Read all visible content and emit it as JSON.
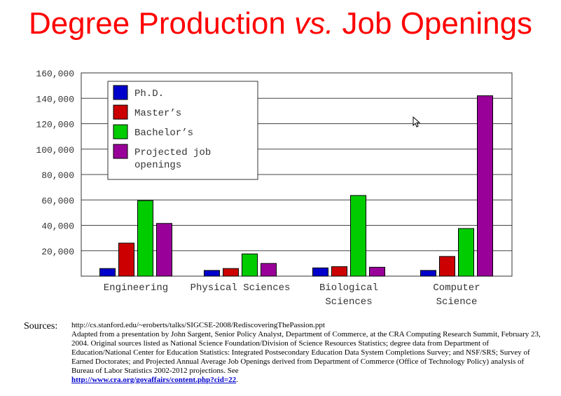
{
  "title": {
    "part1": "Degree Production ",
    "part2": "vs.",
    "part3": " Job Openings"
  },
  "chart_data": {
    "type": "bar",
    "ylim": [
      0,
      160000
    ],
    "yticks": [
      "20,000",
      "40,000",
      "60,000",
      "80,000",
      "100,000",
      "120,000",
      "140,000",
      "160,000"
    ],
    "ytick_values": [
      20000,
      40000,
      60000,
      80000,
      100000,
      120000,
      140000,
      160000
    ],
    "categories": [
      [
        "Engineering"
      ],
      [
        "Physical Sciences"
      ],
      [
        "Biological",
        "Sciences"
      ],
      [
        "Computer",
        "Science"
      ]
    ],
    "series": [
      {
        "name": "Ph.D.",
        "color": "#0000cc",
        "values": [
          6000,
          4500,
          6500,
          4500
        ]
      },
      {
        "name": "Master's",
        "color": "#cc0000",
        "values": [
          26000,
          6000,
          7500,
          15500
        ]
      },
      {
        "name": "Bachelor's",
        "color": "#00cc00",
        "values": [
          59500,
          17500,
          63500,
          37500
        ]
      },
      {
        "name": "Projected job openings",
        "color": "#990099",
        "values": [
          41500,
          10000,
          7000,
          142000
        ]
      }
    ],
    "legend": {
      "placement": "top-left",
      "entries": [
        [
          "Ph.D."
        ],
        [
          "Master’s"
        ],
        [
          "Bachelor’s"
        ],
        [
          "Projected job",
          "openings"
        ]
      ]
    },
    "grid": true
  },
  "sources": {
    "label": "Sources:",
    "line1": "http://cs.stanford.edu/~eroberts/talks/SIGCSE-2008/RediscoveringThePassion.ppt",
    "body": "Adapted from a presentation by John Sargent, Senior Policy Analyst, Department of Commerce, at the CRA Computing Research Summit, February 23, 2004.  Original sources listed as National Science Foundation/Division of Science Resources Statistics; degree data from Department of Education/National Center for Education Statistics:  Integrated Postsecondary Education Data System Completions Survey; and NSF/SRS; Survey of Earned Doctorates; and Projected Annual Average Job Openings derived from Department of Commerce (Office of Technology Policy) analysis of Bureau of Labor Statistics 2002-2012 projections.  See",
    "link": "http://www.cra.org/govaffairs/content.php?cid=22",
    "trailing": "."
  }
}
